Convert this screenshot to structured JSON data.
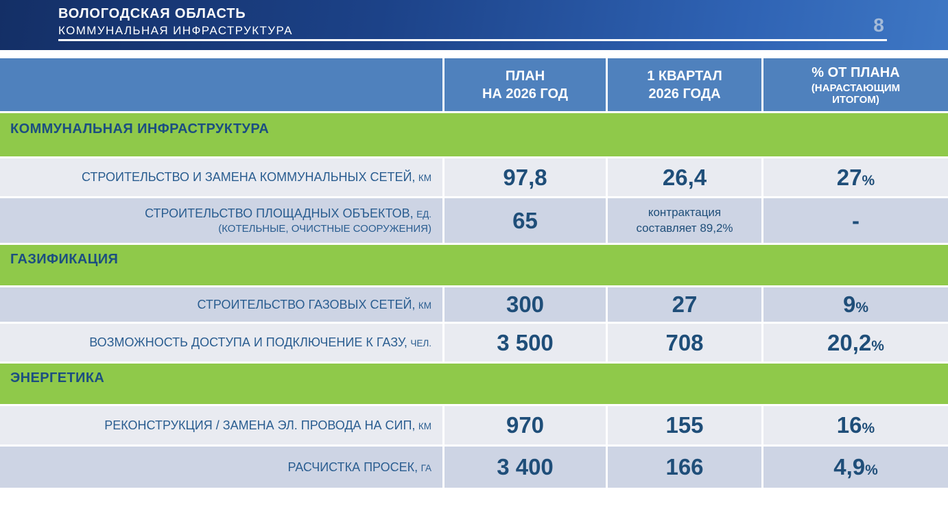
{
  "page": {
    "number": "8"
  },
  "banner": {
    "title": "ВОЛОГОДСКАЯ ОБЛАСТЬ",
    "subtitle": "КОММУНАЛЬНАЯ ИНФРАСТРУКТУРА"
  },
  "table": {
    "columns": [
      {
        "line1": "ПЛАН",
        "line2": "НА 2026 ГОД"
      },
      {
        "line1": "1 КВАРТАЛ",
        "line2": "2026 ГОДА"
      },
      {
        "line1": "% ОТ ПЛАНА",
        "line2": "(НАРАСТАЮЩИМ ИТОГОМ)"
      }
    ],
    "sections": [
      {
        "title": "КОММУНАЛЬНАЯ ИНФРАСТРУКТУРА",
        "rows": [
          {
            "label": "СТРОИТЕЛЬСТВО И ЗАМЕНА КОММУНАЛЬНЫХ СЕТЕЙ,",
            "unit": "КМ",
            "plan": "97,8",
            "quarter": "26,4",
            "percent": "27",
            "percent_sign": "%"
          },
          {
            "label": "СТРОИТЕЛЬСТВО ПЛОЩАДНЫХ ОБЪЕКТОВ,",
            "unit": "ЕД.",
            "sublabel": "(КОТЕЛЬНЫЕ, ОЧИСТНЫЕ СООРУЖЕНИЯ)",
            "plan": "65",
            "quarter_note": "контрактация составляет 89,2%",
            "percent": "-"
          }
        ]
      },
      {
        "title": "ГАЗИФИКАЦИЯ",
        "rows": [
          {
            "label": "СТРОИТЕЛЬСТВО ГАЗОВЫХ СЕТЕЙ,",
            "unit": "КМ",
            "plan": "300",
            "quarter": "27",
            "percent": "9",
            "percent_sign": "%"
          },
          {
            "label": "ВОЗМОЖНОСТЬ ДОСТУПА И ПОДКЛЮЧЕНИЕ К ГАЗУ,",
            "unit": "ЧЕЛ.",
            "plan": "3 500",
            "quarter": "708",
            "percent": "20,2",
            "percent_sign": "%"
          }
        ]
      },
      {
        "title": "ЭНЕРГЕТИКА",
        "rows": [
          {
            "label": "РЕКОНСТРУКЦИЯ / ЗАМЕНА ЭЛ. ПРОВОДА НА СИП,",
            "unit": "КМ",
            "plan": "970",
            "quarter": "155",
            "percent": "16",
            "percent_sign": "%"
          },
          {
            "label": "РАСЧИСТКА ПРОСЕК,",
            "unit": "ГА",
            "plan": "3 400",
            "quarter": "166",
            "percent": "4,9",
            "percent_sign": "%"
          }
        ]
      }
    ]
  },
  "colors": {
    "banner_dark": "#142f66",
    "banner_light": "#3e77c4",
    "header_blue": "#4f81bd",
    "section_green": "#8fc94a",
    "row_light": "#e9ebf1",
    "row_dark": "#cdd4e4",
    "text_blue": "#1f4e79"
  }
}
